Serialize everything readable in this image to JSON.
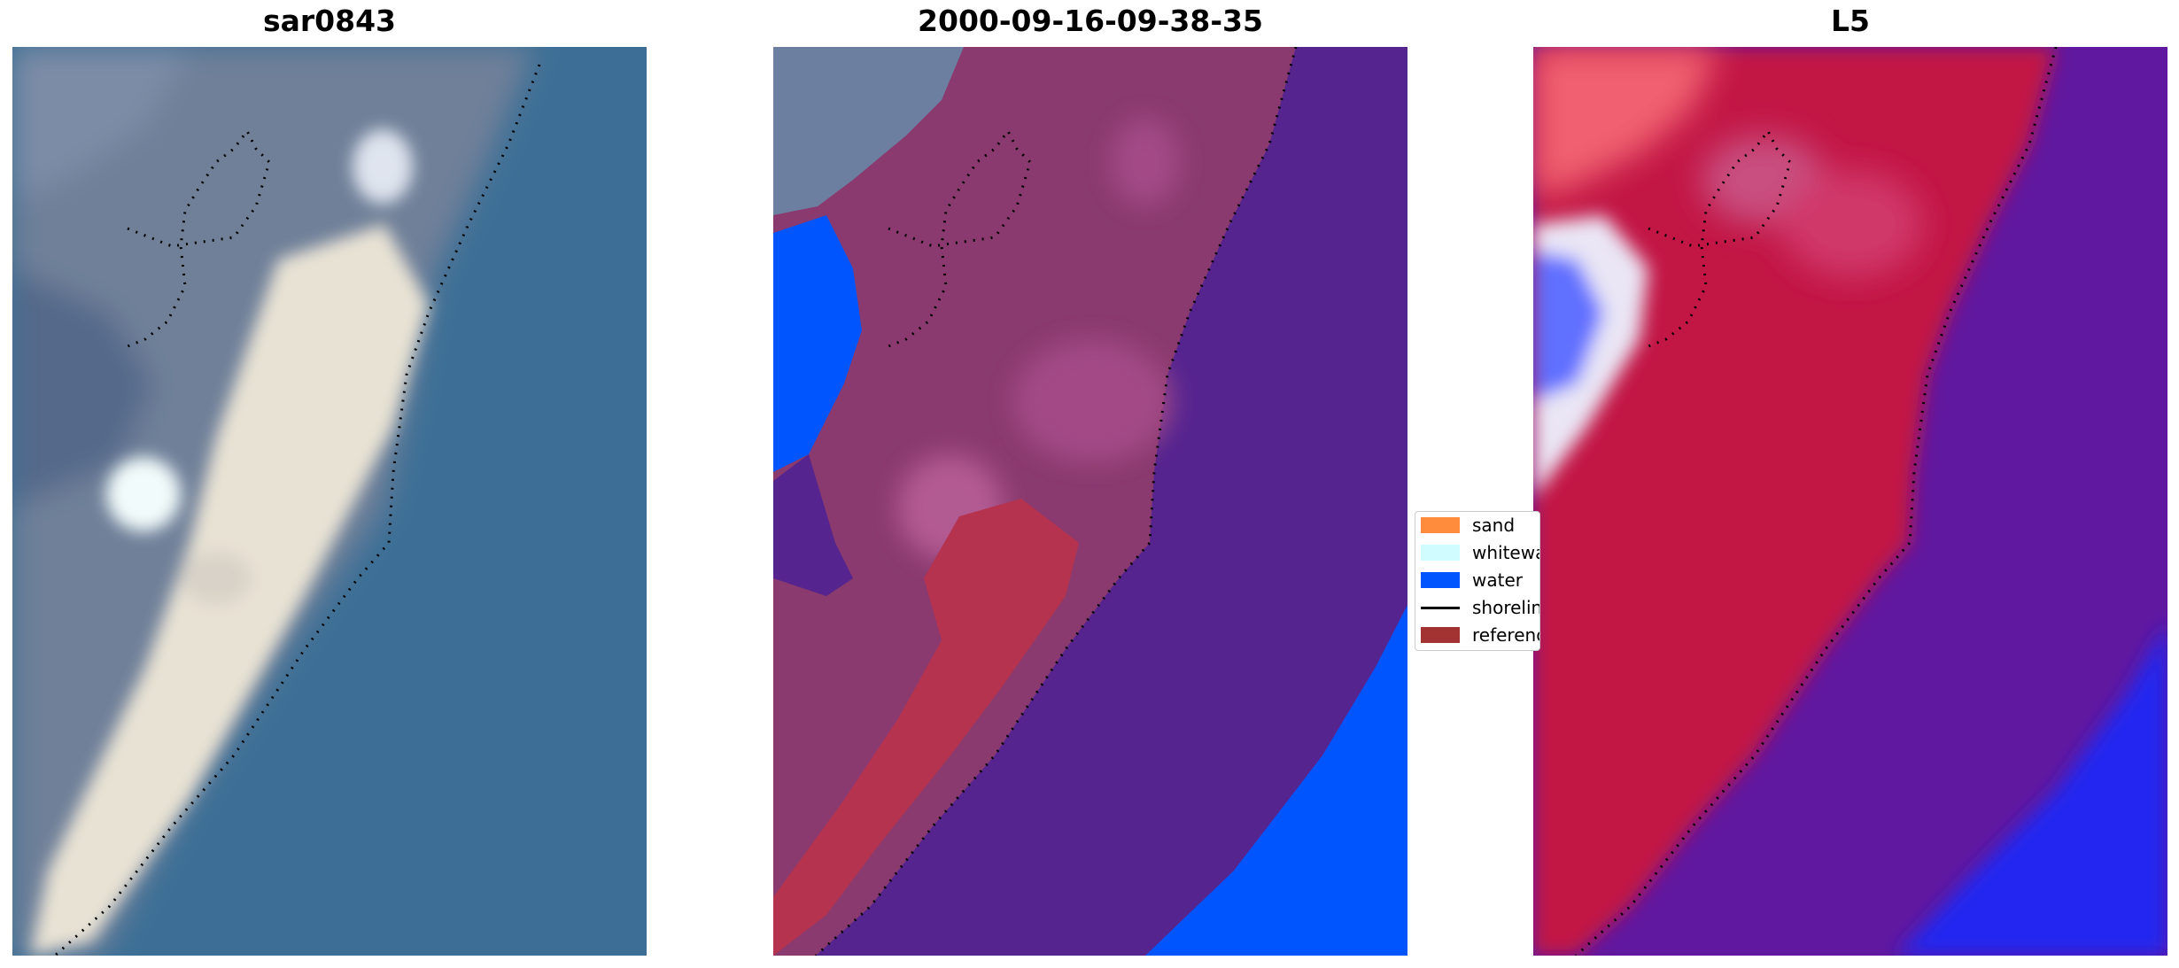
{
  "panels": [
    {
      "title": "sar0843",
      "kind": "rgb-image"
    },
    {
      "title": "2000-09-16-09-38-35",
      "kind": "classified-image"
    },
    {
      "title": "L5",
      "kind": "index-image"
    }
  ],
  "legend": {
    "items": [
      {
        "label": "sand",
        "type": "patch",
        "color": "#ff8c3c"
      },
      {
        "label": "whitewater",
        "type": "patch",
        "color": "#d0fcff"
      },
      {
        "label": "water",
        "type": "patch",
        "color": "#0055ff"
      },
      {
        "label": "shoreline",
        "type": "line",
        "color": "#000000"
      },
      {
        "label": "reference",
        "type": "patch",
        "color": "#a33232"
      }
    ]
  },
  "colors": {
    "ocean_rgb": "#3d6f96",
    "land_rgb": "#6f8099",
    "beach_rgb": "#e8e2d4",
    "class_water": "#0055ff",
    "class_land": "#8a3a6e",
    "class_sea": "#55248f",
    "class_reference": "#b5334f",
    "index_red": "#c21444",
    "index_purple": "#6018a0",
    "index_blue": "#2228f0",
    "index_white": "#f0e8f0",
    "shoreline": "#000000"
  }
}
